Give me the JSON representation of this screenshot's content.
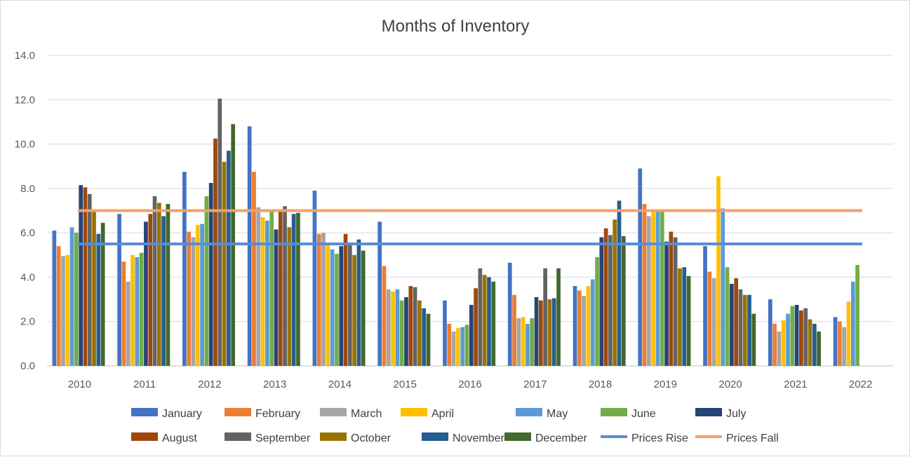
{
  "chart_data": {
    "type": "bar",
    "title": "Months of Inventory",
    "xlabel": "",
    "ylabel": "",
    "ylim": [
      0,
      14
    ],
    "yticks": [
      "0.0",
      "2.0",
      "4.0",
      "6.0",
      "8.0",
      "10.0",
      "12.0",
      "14.0"
    ],
    "grid": true,
    "legend_position": "bottom",
    "categories": [
      "2010",
      "2011",
      "2012",
      "2013",
      "2014",
      "2015",
      "2016",
      "2017",
      "2018",
      "2019",
      "2020",
      "2021",
      "2022"
    ],
    "series": [
      {
        "name": "January",
        "color": "#4472C4",
        "values": [
          6.1,
          6.85,
          8.75,
          10.8,
          7.9,
          6.5,
          2.95,
          4.65,
          3.6,
          8.9,
          5.4,
          3.0,
          2.2
        ]
      },
      {
        "name": "February",
        "color": "#ED7D31",
        "values": [
          5.4,
          4.7,
          6.05,
          8.75,
          5.95,
          4.5,
          1.9,
          3.2,
          3.4,
          7.3,
          4.25,
          1.9,
          2.0
        ]
      },
      {
        "name": "March",
        "color": "#A5A5A5",
        "values": [
          4.95,
          3.8,
          5.8,
          7.15,
          6.0,
          3.45,
          1.55,
          2.15,
          3.15,
          6.75,
          3.95,
          1.55,
          1.75
        ]
      },
      {
        "name": "April",
        "color": "#FFC000",
        "values": [
          5.0,
          5.0,
          6.35,
          6.7,
          5.5,
          3.35,
          1.7,
          2.2,
          3.6,
          7.05,
          8.55,
          2.05,
          2.9
        ]
      },
      {
        "name": "May",
        "color": "#5B9BD5",
        "values": [
          6.25,
          4.9,
          6.4,
          6.55,
          5.25,
          3.45,
          1.75,
          1.9,
          3.9,
          7.0,
          7.1,
          2.35,
          3.8
        ]
      },
      {
        "name": "June",
        "color": "#70AD47",
        "values": [
          6.0,
          5.1,
          7.65,
          6.95,
          5.05,
          2.95,
          1.85,
          2.15,
          4.9,
          7.0,
          4.45,
          2.7,
          4.55
        ]
      },
      {
        "name": "July",
        "color": "#264478",
        "values": [
          8.15,
          6.5,
          8.25,
          6.15,
          5.4,
          3.1,
          2.75,
          3.1,
          5.8,
          5.6,
          3.7,
          2.75,
          null
        ]
      },
      {
        "name": "August",
        "color": "#9E480E",
        "values": [
          8.05,
          6.85,
          10.25,
          6.95,
          5.95,
          3.6,
          3.5,
          2.95,
          6.2,
          6.05,
          3.95,
          2.5,
          null
        ]
      },
      {
        "name": "September",
        "color": "#636363",
        "values": [
          7.75,
          7.65,
          12.05,
          7.2,
          5.5,
          3.55,
          4.4,
          4.4,
          5.9,
          5.8,
          3.45,
          2.6,
          null
        ]
      },
      {
        "name": "October",
        "color": "#997300",
        "values": [
          7.0,
          7.35,
          9.2,
          6.25,
          5.0,
          2.95,
          4.1,
          3.0,
          6.6,
          4.4,
          3.2,
          2.1,
          null
        ]
      },
      {
        "name": "November",
        "color": "#255E91",
        "values": [
          5.95,
          6.75,
          9.7,
          6.85,
          5.7,
          2.6,
          4.0,
          3.05,
          7.45,
          4.45,
          3.2,
          1.9,
          null
        ]
      },
      {
        "name": "December",
        "color": "#43682B",
        "values": [
          6.45,
          7.3,
          10.9,
          6.9,
          5.2,
          2.35,
          3.8,
          4.4,
          5.85,
          4.05,
          2.35,
          1.55,
          null
        ]
      }
    ],
    "reference_lines": [
      {
        "name": "Prices Rise",
        "color": "#5B8BD5",
        "value": 5.5
      },
      {
        "name": "Prices Fall",
        "color": "#F4A067",
        "value": 7.0
      }
    ]
  }
}
